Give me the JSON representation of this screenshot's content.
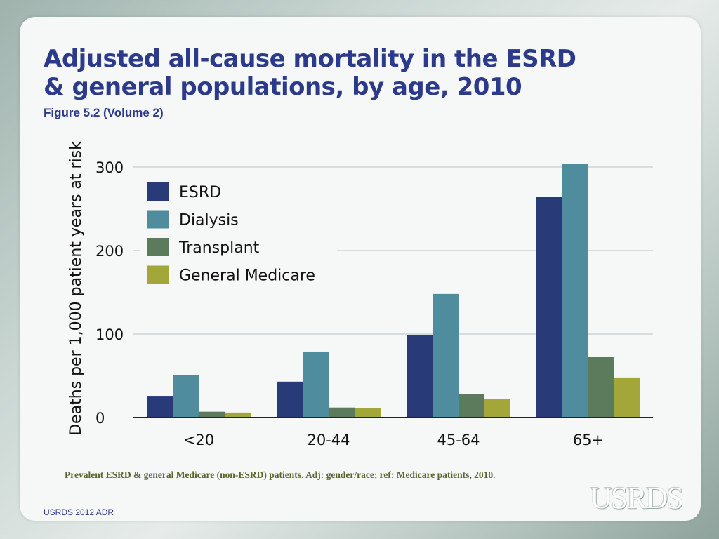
{
  "slide": {
    "title_line1": "Adjusted all-cause mortality in the ESRD",
    "title_line2": "& general populations, by age, 2010",
    "subtitle": "Figure 5.2 (Volume 2)",
    "footnote": "Prevalent ESRD & general Medicare (non-ESRD) patients. Adj: gender/race; ref: Medicare patients, 2010.",
    "footer": "USRDS 2012 ADR",
    "logo_text": "USRDS"
  },
  "colors": {
    "title": "#2b3a8a",
    "grid": "#cfd3d3",
    "axis": "#222222"
  },
  "chart_data": {
    "type": "bar",
    "title": "Adjusted all-cause mortality in the ESRD & general populations, by age, 2010",
    "xlabel": "",
    "ylabel": "Deaths per 1,000 patient years at risk",
    "ylim": [
      0,
      300
    ],
    "yticks": [
      0,
      100,
      200,
      300
    ],
    "grid": true,
    "legend_position": "top-left",
    "categories": [
      "<20",
      "20-44",
      "45-64",
      "65+"
    ],
    "series": [
      {
        "name": "ESRD",
        "color": "#283a78",
        "values": [
          26,
          43,
          99,
          264
        ]
      },
      {
        "name": "Dialysis",
        "color": "#4f8c9e",
        "values": [
          51,
          79,
          148,
          304
        ]
      },
      {
        "name": "Transplant",
        "color": "#5c7a5c",
        "values": [
          7,
          12,
          28,
          73
        ]
      },
      {
        "name": "General Medicare",
        "color": "#a3a73a",
        "values": [
          6,
          11,
          22,
          48
        ]
      }
    ]
  }
}
